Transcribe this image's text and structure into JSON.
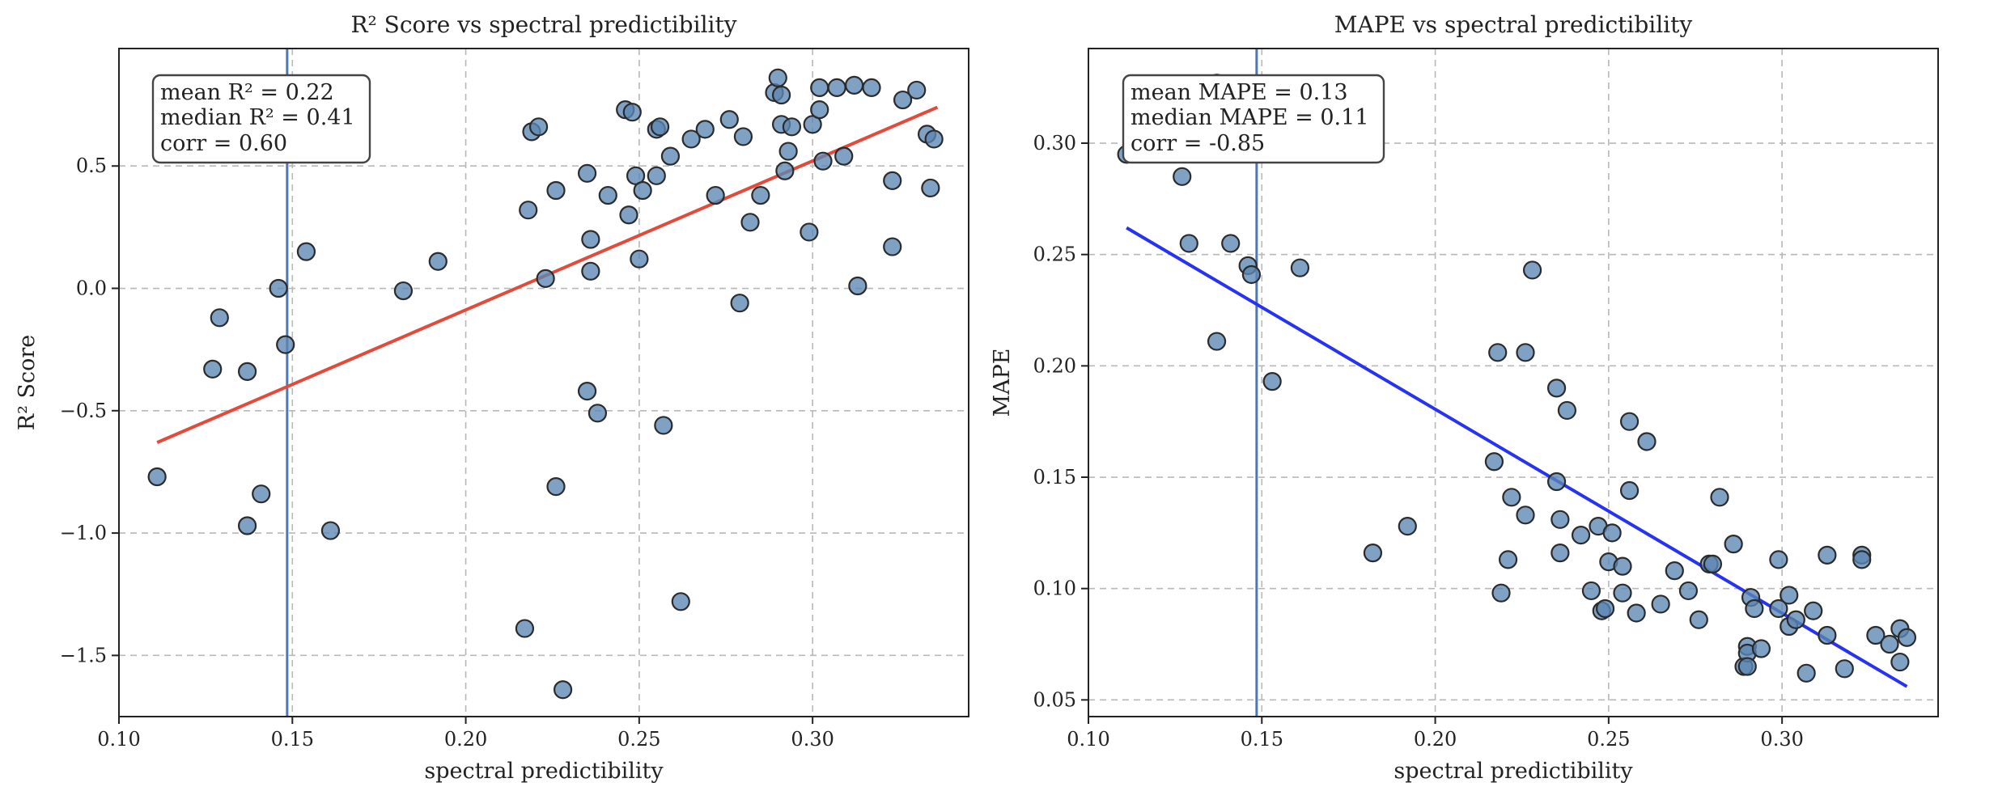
{
  "chart_data": [
    {
      "type": "scatter",
      "title": "R² Score vs spectral predictibility",
      "xlabel": "spectral predictibility",
      "ylabel": "R² Score",
      "xlim": [
        0.1,
        0.345
      ],
      "ylim": [
        -1.75,
        0.98
      ],
      "xticks": [
        0.1,
        0.15,
        0.2,
        0.25,
        0.3
      ],
      "xtick_labels": [
        "0.10",
        "0.15",
        "0.20",
        "0.25",
        "0.30"
      ],
      "yticks": [
        0.5,
        0.0,
        -0.5,
        -1.0,
        -1.5
      ],
      "ytick_labels": [
        "0.5",
        "0.0",
        "−0.5",
        "−1.0",
        "−1.5"
      ],
      "grid": true,
      "vline_x": 0.1485,
      "vline_color": "#4a78b8",
      "point_color": "#5b86b3",
      "trend_color": "#e34a3a",
      "trend": {
        "x": [
          0.111,
          0.336
        ],
        "y": [
          -0.63,
          0.74
        ]
      },
      "stats": [
        "mean R² = 0.22",
        "median R² = 0.41",
        "corr = 0.60"
      ],
      "x": [
        0.111,
        0.127,
        0.129,
        0.137,
        0.137,
        0.141,
        0.146,
        0.148,
        0.154,
        0.161,
        0.182,
        0.192,
        0.217,
        0.218,
        0.219,
        0.221,
        0.223,
        0.226,
        0.226,
        0.228,
        0.235,
        0.235,
        0.236,
        0.236,
        0.238,
        0.241,
        0.246,
        0.247,
        0.248,
        0.249,
        0.25,
        0.251,
        0.255,
        0.255,
        0.256,
        0.257,
        0.259,
        0.262,
        0.265,
        0.269,
        0.272,
        0.276,
        0.279,
        0.28,
        0.282,
        0.285,
        0.289,
        0.29,
        0.291,
        0.291,
        0.292,
        0.293,
        0.294,
        0.299,
        0.3,
        0.302,
        0.302,
        0.303,
        0.307,
        0.309,
        0.312,
        0.313,
        0.317,
        0.323,
        0.323,
        0.326,
        0.33,
        0.333,
        0.334,
        0.335
      ],
      "y": [
        -0.77,
        -0.33,
        -0.12,
        -0.97,
        -0.34,
        -0.84,
        0.0,
        -0.23,
        0.15,
        -0.99,
        -0.01,
        0.11,
        -1.39,
        0.32,
        0.64,
        0.66,
        0.04,
        0.4,
        -0.81,
        -1.64,
        0.47,
        -0.42,
        0.2,
        0.07,
        -0.51,
        0.38,
        0.73,
        0.3,
        0.72,
        0.46,
        0.12,
        0.4,
        0.65,
        0.46,
        0.66,
        -0.56,
        0.54,
        -1.28,
        0.61,
        0.65,
        0.38,
        0.69,
        -0.06,
        0.62,
        0.27,
        0.38,
        0.8,
        0.86,
        0.67,
        0.79,
        0.48,
        0.56,
        0.66,
        0.23,
        0.67,
        0.82,
        0.73,
        0.52,
        0.82,
        0.54,
        0.83,
        0.01,
        0.82,
        0.44,
        0.17,
        0.77,
        0.81,
        0.63,
        0.41,
        0.61
      ]
    },
    {
      "type": "scatter",
      "title": "MAPE vs spectral predictibility",
      "xlabel": "spectral predictibility",
      "ylabel": "MAPE",
      "xlim": [
        0.1,
        0.345
      ],
      "ylim": [
        0.0425,
        0.3425
      ],
      "xticks": [
        0.1,
        0.15,
        0.2,
        0.25,
        0.3
      ],
      "xtick_labels": [
        "0.10",
        "0.15",
        "0.20",
        "0.25",
        "0.30"
      ],
      "yticks": [
        0.3,
        0.25,
        0.2,
        0.15,
        0.1,
        0.05
      ],
      "ytick_labels": [
        "0.30",
        "0.25",
        "0.20",
        "0.15",
        "0.10",
        "0.05"
      ],
      "grid": true,
      "vline_x": 0.1485,
      "vline_color": "#4a78b8",
      "point_color": "#5b86b3",
      "trend_color": "#2633f0",
      "trend": {
        "x": [
          0.111,
          0.336
        ],
        "y": [
          0.262,
          0.056
        ]
      },
      "stats": [
        "mean MAPE = 0.13",
        "median MAPE = 0.11",
        "corr = -0.85"
      ],
      "x": [
        0.111,
        0.127,
        0.129,
        0.137,
        0.137,
        0.141,
        0.146,
        0.147,
        0.153,
        0.161,
        0.182,
        0.192,
        0.217,
        0.218,
        0.219,
        0.221,
        0.222,
        0.226,
        0.226,
        0.228,
        0.235,
        0.235,
        0.236,
        0.236,
        0.238,
        0.242,
        0.245,
        0.247,
        0.248,
        0.249,
        0.25,
        0.251,
        0.254,
        0.254,
        0.256,
        0.256,
        0.258,
        0.261,
        0.265,
        0.269,
        0.273,
        0.276,
        0.279,
        0.28,
        0.282,
        0.286,
        0.289,
        0.29,
        0.29,
        0.29,
        0.291,
        0.292,
        0.294,
        0.299,
        0.299,
        0.302,
        0.302,
        0.304,
        0.307,
        0.309,
        0.313,
        0.313,
        0.318,
        0.323,
        0.323,
        0.327,
        0.331,
        0.334,
        0.334,
        0.336
      ],
      "y": [
        0.295,
        0.285,
        0.255,
        0.211,
        0.327,
        0.255,
        0.245,
        0.241,
        0.193,
        0.244,
        0.116,
        0.128,
        0.157,
        0.206,
        0.098,
        0.113,
        0.141,
        0.206,
        0.133,
        0.243,
        0.19,
        0.148,
        0.116,
        0.131,
        0.18,
        0.124,
        0.099,
        0.128,
        0.09,
        0.091,
        0.112,
        0.125,
        0.11,
        0.098,
        0.144,
        0.175,
        0.089,
        0.166,
        0.093,
        0.108,
        0.099,
        0.086,
        0.111,
        0.111,
        0.141,
        0.12,
        0.065,
        0.074,
        0.071,
        0.065,
        0.096,
        0.091,
        0.073,
        0.113,
        0.091,
        0.083,
        0.097,
        0.086,
        0.062,
        0.09,
        0.115,
        0.079,
        0.064,
        0.115,
        0.113,
        0.079,
        0.075,
        0.082,
        0.067,
        0.078
      ]
    }
  ]
}
